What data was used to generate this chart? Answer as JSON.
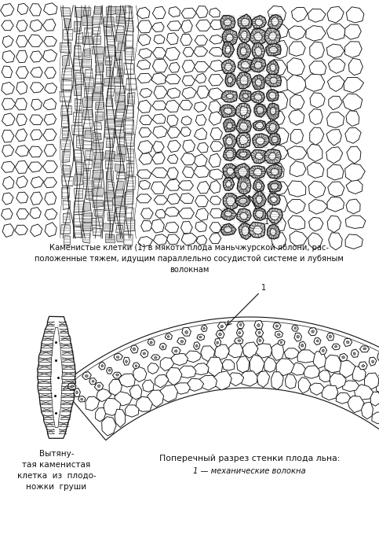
{
  "bg_color": "#ffffff",
  "fig_width": 4.83,
  "fig_height": 6.98,
  "dpi": 100,
  "top_caption": "Каменистые клетки (1) в мякоти плода маньчжурской яблони, рас-\nположенные тяжем, идущим параллельно сосудистой системе и лубяным\nволокнам",
  "bottom_left_caption": "Вытяну-\nтая каменистая\nклетка  из  плодо-\nножки  груши",
  "bottom_right_title": "Поперечный разрез стенки плода льна:",
  "bottom_right_label": "1 — механические волокна",
  "line_color": "#111111",
  "text_color": "#111111"
}
